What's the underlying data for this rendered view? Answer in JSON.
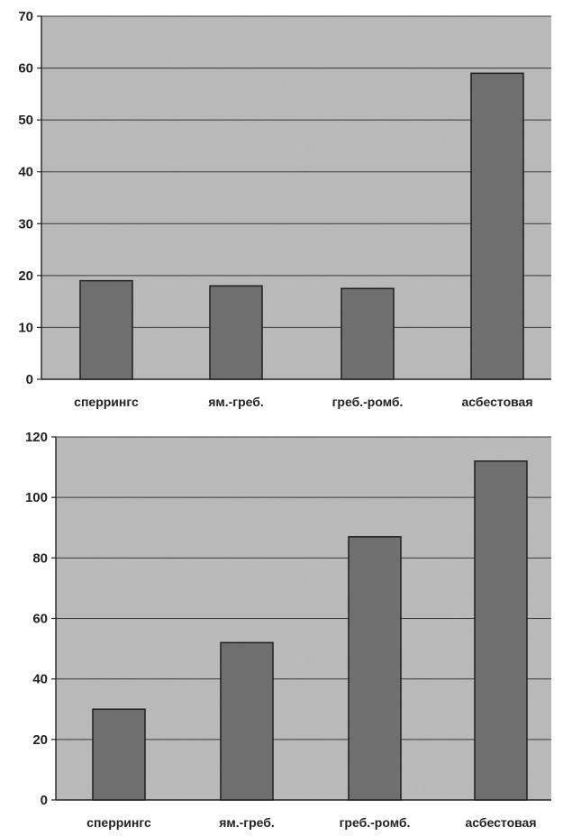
{
  "chart_data": [
    {
      "type": "bar",
      "categories": [
        "сперрингс",
        "ям.-греб.",
        "греб.-ромб.",
        "асбестовая"
      ],
      "values": [
        19,
        18,
        17.5,
        59
      ],
      "ylim": [
        0,
        70
      ],
      "yticks": [
        0,
        10,
        20,
        30,
        40,
        50,
        60,
        70
      ],
      "grid": true,
      "legend": "none",
      "colors": {
        "plot_bg": "#b9b9b9",
        "bar": "#6f6f6f",
        "bar_stroke": "#1e1e1e",
        "grid": "#3a3a3a"
      }
    },
    {
      "type": "bar",
      "categories": [
        "сперрингс",
        "ям.-греб.",
        "греб.-ромб.",
        "асбестовая"
      ],
      "values": [
        30,
        52,
        87,
        112
      ],
      "ylim": [
        0,
        120
      ],
      "yticks": [
        0,
        20,
        40,
        60,
        80,
        100,
        120
      ],
      "grid": true,
      "legend": "none",
      "colors": {
        "plot_bg": "#b9b9b9",
        "bar": "#6f6f6f",
        "bar_stroke": "#1e1e1e",
        "grid": "#3a3a3a"
      }
    }
  ]
}
